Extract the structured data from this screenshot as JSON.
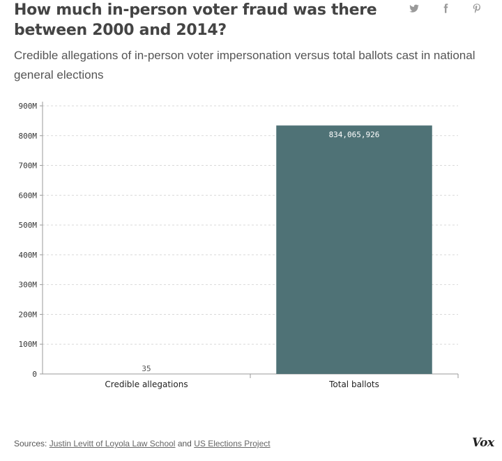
{
  "header": {
    "title": "How much in-person voter fraud was there between 2000 and 2014?",
    "subtitle": "Credible allegations of in-person voter impersonation versus total ballots cast in national general elections"
  },
  "share": {
    "icons": [
      "twitter-icon",
      "facebook-icon",
      "pinterest-icon"
    ],
    "color": "#9a9a9a"
  },
  "footer": {
    "sources_label": "Sources:",
    "source_1": "Justin Levitt of Loyola Law School",
    "and_text": "and",
    "source_2": "US Elections Project",
    "logo": "Vox"
  },
  "colors": {
    "bar": "#4f7276",
    "grid": "#d9d9d9",
    "axis": "#999999",
    "bar_label_inside": "#ffffff",
    "bar_label_outside": "#555555"
  },
  "chart_data": {
    "type": "bar",
    "categories": [
      "Credible allegations",
      "Total ballots"
    ],
    "values": [
      35,
      834065926
    ],
    "value_labels": [
      "35",
      "834,065,926"
    ],
    "ylim": [
      0,
      900000000
    ],
    "yticks": [
      0,
      100000000,
      200000000,
      300000000,
      400000000,
      500000000,
      600000000,
      700000000,
      800000000,
      900000000
    ],
    "ytick_labels": [
      "0",
      "100M",
      "200M",
      "300M",
      "400M",
      "500M",
      "600M",
      "700M",
      "800M",
      "900M"
    ],
    "grid": true,
    "xlabel": "",
    "ylabel": ""
  }
}
